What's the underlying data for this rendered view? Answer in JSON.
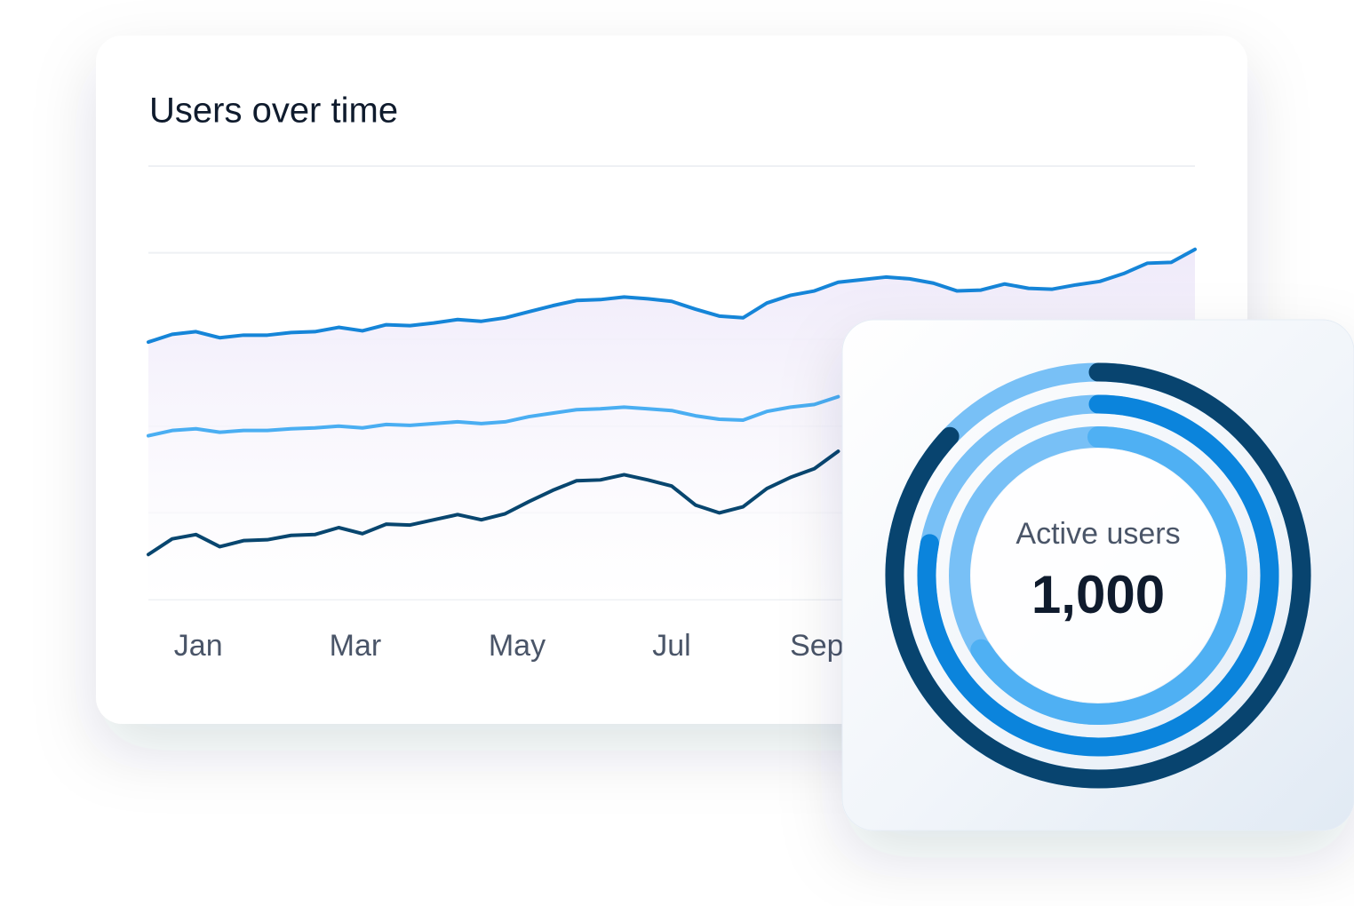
{
  "chart_data": [
    {
      "type": "line",
      "title": "Users over time",
      "x": [
        0,
        1,
        2,
        3,
        4,
        5,
        6,
        7,
        8,
        9,
        10,
        11,
        12,
        13,
        14,
        15,
        16,
        17,
        18,
        19,
        20,
        21,
        22,
        23,
        24,
        25,
        26,
        27,
        28,
        29,
        30,
        31,
        32,
        33,
        34,
        35,
        36,
        37,
        38,
        39,
        40,
        41,
        42,
        43,
        44
      ],
      "xlim": [
        0,
        44
      ],
      "xticks": [
        {
          "value": 2.1,
          "label": "Jan"
        },
        {
          "value": 8.7,
          "label": "Mar"
        },
        {
          "value": 15.5,
          "label": "May"
        },
        {
          "value": 22,
          "label": "Jul"
        },
        {
          "value": 28.1,
          "label": "Sep"
        }
      ],
      "ylim": [
        0,
        5
      ],
      "yticks": [
        0,
        1,
        2,
        3,
        4,
        5
      ],
      "grid": true,
      "series": [
        {
          "color": "#1585d8",
          "values": [
            2.97,
            3.06,
            3.09,
            3.02,
            3.05,
            3.05,
            3.08,
            3.09,
            3.14,
            3.1,
            3.17,
            3.16,
            3.19,
            3.23,
            3.21,
            3.25,
            3.32,
            3.39,
            3.45,
            3.46,
            3.49,
            3.47,
            3.44,
            3.35,
            3.27,
            3.25,
            3.42,
            3.51,
            3.56,
            3.66,
            3.69,
            3.72,
            3.7,
            3.65,
            3.56,
            3.57,
            3.64,
            3.59,
            3.58,
            3.63,
            3.67,
            3.76,
            3.88,
            3.89,
            4.04
          ]
        },
        {
          "color": "#4aaef2",
          "values": [
            1.89,
            1.95,
            1.97,
            1.93,
            1.95,
            1.95,
            1.97,
            1.98,
            2.0,
            1.98,
            2.02,
            2.01,
            2.03,
            2.05,
            2.03,
            2.05,
            2.11,
            2.15,
            2.19,
            2.2,
            2.22,
            2.2,
            2.18,
            2.12,
            2.08,
            2.07,
            2.17,
            2.22,
            2.25,
            2.34,
            null,
            null,
            null,
            null,
            null,
            null,
            null,
            null,
            null,
            null,
            null,
            null,
            null,
            null,
            null
          ]
        },
        {
          "color": "#08466f",
          "values": [
            0.52,
            0.7,
            0.75,
            0.61,
            0.68,
            0.69,
            0.74,
            0.75,
            0.83,
            0.76,
            0.87,
            0.86,
            0.92,
            0.98,
            0.92,
            0.99,
            1.13,
            1.26,
            1.37,
            1.38,
            1.44,
            1.38,
            1.31,
            1.09,
            1.0,
            1.07,
            1.28,
            1.41,
            1.51,
            1.71,
            null,
            null,
            null,
            null,
            null,
            null,
            null,
            null,
            null,
            null,
            null,
            null,
            null,
            null,
            null
          ]
        }
      ]
    },
    {
      "type": "donut",
      "title": "Active users",
      "value": 1000,
      "value_label": "1,000",
      "values": [
        87,
        78,
        66
      ],
      "colors": [
        "#08446f",
        "#0b84dc",
        "#4fb0f3"
      ],
      "track_color": "#78c0f6"
    }
  ]
}
